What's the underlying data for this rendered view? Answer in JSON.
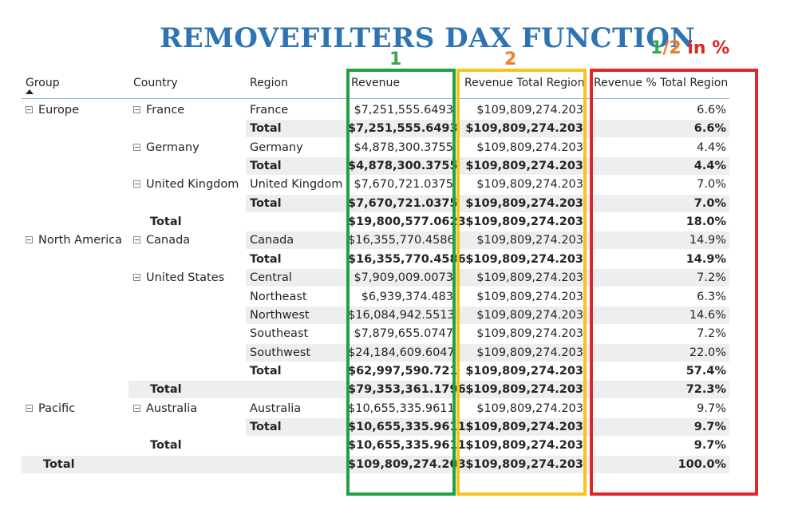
{
  "title": "REMOVEFILTERS DAX FUNCTION",
  "labels": {
    "col1": "1",
    "col2": "2",
    "col3_a": "1",
    "col3_slash": "/",
    "col3_b": "2",
    "col3_rest": " in %"
  },
  "headers": [
    "Group",
    "Country",
    "Region",
    "Revenue",
    "Revenue Total Region",
    "Revenue % Total Region"
  ],
  "rows": [
    {
      "group": "Europe",
      "group_exp": true,
      "country": "France",
      "country_exp": true,
      "region": "France",
      "revenue": "$7,251,555.6493",
      "total": "$109,809,274.203",
      "pct": "6.6%",
      "bold": false,
      "band": false
    },
    {
      "group": "",
      "country": "",
      "region": "Total",
      "revenue": "$7,251,555.6493",
      "total": "$109,809,274.203",
      "pct": "6.6%",
      "bold": true,
      "band": true
    },
    {
      "group": "",
      "country": "Germany",
      "country_exp": true,
      "region": "Germany",
      "revenue": "$4,878,300.3755",
      "total": "$109,809,274.203",
      "pct": "4.4%",
      "bold": false,
      "band": false
    },
    {
      "group": "",
      "country": "",
      "region": "Total",
      "revenue": "$4,878,300.3755",
      "total": "$109,809,274.203",
      "pct": "4.4%",
      "bold": true,
      "band": true
    },
    {
      "group": "",
      "country": "United Kingdom",
      "country_exp": true,
      "region": "United Kingdom",
      "revenue": "$7,670,721.0375",
      "total": "$109,809,274.203",
      "pct": "7.0%",
      "bold": false,
      "band": false
    },
    {
      "group": "",
      "country": "",
      "region": "Total",
      "revenue": "$7,670,721.0375",
      "total": "$109,809,274.203",
      "pct": "7.0%",
      "bold": true,
      "band": true
    },
    {
      "group": "",
      "country": "Total",
      "country_bold": true,
      "region": "",
      "revenue": "$19,800,577.0623",
      "total": "$109,809,274.203",
      "pct": "18.0%",
      "bold": true,
      "band": false
    },
    {
      "group": "North America",
      "group_exp": true,
      "country": "Canada",
      "country_exp": true,
      "region": "Canada",
      "revenue": "$16,355,770.4586",
      "total": "$109,809,274.203",
      "pct": "14.9%",
      "bold": false,
      "band": true
    },
    {
      "group": "",
      "country": "",
      "region": "Total",
      "revenue": "$16,355,770.4586",
      "total": "$109,809,274.203",
      "pct": "14.9%",
      "bold": true,
      "band": false
    },
    {
      "group": "",
      "country": "United States",
      "country_exp": true,
      "region": "Central",
      "revenue": "$7,909,009.0073",
      "total": "$109,809,274.203",
      "pct": "7.2%",
      "bold": false,
      "band": true
    },
    {
      "group": "",
      "country": "",
      "region": "Northeast",
      "revenue": "$6,939,374.483",
      "total": "$109,809,274.203",
      "pct": "6.3%",
      "bold": false,
      "band": false
    },
    {
      "group": "",
      "country": "",
      "region": "Northwest",
      "revenue": "$16,084,942.5513",
      "total": "$109,809,274.203",
      "pct": "14.6%",
      "bold": false,
      "band": true
    },
    {
      "group": "",
      "country": "",
      "region": "Southeast",
      "revenue": "$7,879,655.0747",
      "total": "$109,809,274.203",
      "pct": "7.2%",
      "bold": false,
      "band": false
    },
    {
      "group": "",
      "country": "",
      "region": "Southwest",
      "revenue": "$24,184,609.6047",
      "total": "$109,809,274.203",
      "pct": "22.0%",
      "bold": false,
      "band": true
    },
    {
      "group": "",
      "country": "",
      "region": "Total",
      "revenue": "$62,997,590.721",
      "total": "$109,809,274.203",
      "pct": "57.4%",
      "bold": true,
      "band": false
    },
    {
      "group": "",
      "country": "Total",
      "country_bold": true,
      "region": "",
      "revenue": "$79,353,361.1796",
      "total": "$109,809,274.203",
      "pct": "72.3%",
      "bold": true,
      "band": true,
      "band_from_country": true
    },
    {
      "group": "Pacific",
      "group_exp": true,
      "country": "Australia",
      "country_exp": true,
      "region": "Australia",
      "revenue": "$10,655,335.9611",
      "total": "$109,809,274.203",
      "pct": "9.7%",
      "bold": false,
      "band": false
    },
    {
      "group": "",
      "country": "",
      "region": "Total",
      "revenue": "$10,655,335.9611",
      "total": "$109,809,274.203",
      "pct": "9.7%",
      "bold": true,
      "band": true
    },
    {
      "group": "",
      "country": "Total",
      "country_bold": true,
      "region": "",
      "revenue": "$10,655,335.9611",
      "total": "$109,809,274.203",
      "pct": "9.7%",
      "bold": true,
      "band": false
    },
    {
      "group": "Total",
      "group_bold": true,
      "country": "",
      "region": "",
      "revenue": "$109,809,274.203",
      "total": "$109,809,274.203",
      "pct": "100.0%",
      "bold": true,
      "band": true,
      "band_full": true
    }
  ],
  "colors": {
    "green": "#21a144",
    "yellow": "#f4c320",
    "red": "#e0262d",
    "title": "#2e74b5"
  }
}
